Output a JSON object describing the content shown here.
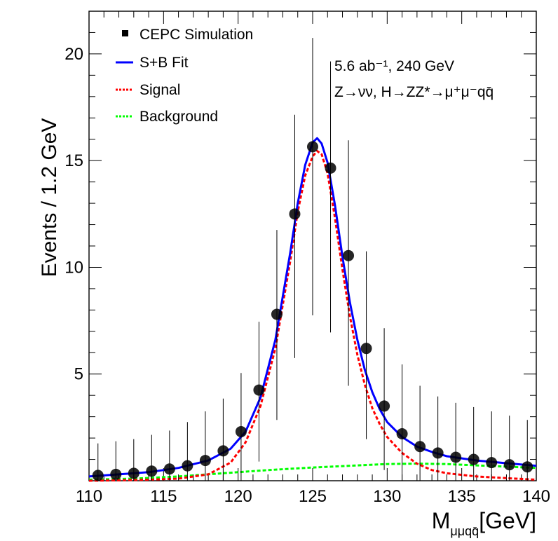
{
  "chart_data": {
    "type": "scatter",
    "title": "",
    "xlabel": "M",
    "xlabel_sub": "μμqq̄",
    "xlabel_unit": "[GeV]",
    "ylabel": "Events / 1.2  GeV",
    "xlim": [
      110,
      140
    ],
    "ylim": [
      0,
      22
    ],
    "xticks": [
      110,
      115,
      120,
      125,
      130,
      135,
      140
    ],
    "yticks": [
      5,
      10,
      15,
      20
    ],
    "annotation_lumi": "5.6 ab⁻¹, 240 GeV",
    "annotation_process": "Z→νν, H→ZZ*→μ⁺μ⁻qq̄",
    "legend": {
      "placement": "top-left",
      "entries": [
        {
          "label": "CEPC Simulation",
          "style": "marker",
          "color": "#000000"
        },
        {
          "label": "S+B Fit",
          "style": "solid",
          "color": "#0000ff"
        },
        {
          "label": "Signal",
          "style": "dotted",
          "color": "#ff0000"
        },
        {
          "label": "Background",
          "style": "dotted",
          "color": "#00ff00"
        }
      ]
    },
    "series": [
      {
        "name": "CEPC Simulation",
        "kind": "points",
        "color": "#000000",
        "x": [
          110.6,
          111.8,
          113.0,
          114.2,
          115.4,
          116.6,
          117.8,
          119.0,
          120.2,
          121.4,
          122.6,
          123.8,
          125.0,
          126.2,
          127.4,
          128.6,
          129.8,
          131.0,
          132.2,
          133.4,
          134.6,
          135.8,
          137.0,
          138.2,
          139.4
        ],
        "y": [
          0.25,
          0.3,
          0.35,
          0.45,
          0.55,
          0.7,
          0.95,
          1.4,
          2.3,
          4.25,
          7.8,
          12.5,
          15.65,
          14.65,
          10.55,
          6.2,
          3.5,
          2.2,
          1.6,
          1.3,
          1.1,
          1.0,
          0.85,
          0.75,
          0.65
        ],
        "err_hi": [
          1.75,
          1.85,
          1.95,
          2.15,
          2.35,
          2.75,
          3.25,
          3.85,
          5.05,
          7.45,
          11.75,
          17.15,
          20.75,
          19.65,
          15.95,
          10.75,
          7.15,
          5.45,
          4.45,
          3.95,
          3.65,
          3.45,
          3.25,
          3.05,
          2.85
        ],
        "err_lo": [
          0,
          0,
          0,
          0,
          0,
          0,
          0,
          0,
          0,
          0.9,
          2.85,
          5.75,
          7.75,
          6.95,
          4.45,
          1.95,
          0.5,
          0,
          0,
          0,
          0,
          0,
          0,
          0,
          0
        ]
      },
      {
        "name": "S+B Fit",
        "kind": "line",
        "color": "#0000ff",
        "x": [
          110.0,
          112.0,
          114.0,
          116.0,
          118.0,
          119.5,
          120.5,
          121.5,
          122.5,
          123.5,
          124.0,
          124.5,
          125.0,
          125.3,
          125.6,
          126.0,
          126.5,
          127.0,
          127.5,
          128.0,
          128.5,
          129.0,
          129.5,
          130.0,
          131.0,
          132.0,
          133.0,
          134.0,
          136.0,
          138.0,
          140.0
        ],
        "y": [
          0.2,
          0.3,
          0.4,
          0.6,
          0.95,
          1.5,
          2.3,
          3.9,
          6.6,
          10.7,
          13.0,
          14.8,
          15.85,
          16.05,
          15.8,
          14.9,
          12.9,
          10.5,
          8.35,
          6.6,
          5.2,
          4.15,
          3.35,
          2.75,
          2.05,
          1.6,
          1.35,
          1.15,
          0.95,
          0.82,
          0.7
        ]
      },
      {
        "name": "Signal",
        "kind": "line",
        "color": "#ff0000",
        "x": [
          110.0,
          112.0,
          114.0,
          116.0,
          118.0,
          119.5,
          120.5,
          121.5,
          122.5,
          123.5,
          124.0,
          124.5,
          125.0,
          125.3,
          125.6,
          126.0,
          126.5,
          127.0,
          127.5,
          128.0,
          128.5,
          129.0,
          129.5,
          130.0,
          131.0,
          132.0,
          133.0,
          134.0,
          136.0,
          138.0,
          140.0
        ],
        "y": [
          0.0,
          0.02,
          0.05,
          0.1,
          0.3,
          0.85,
          1.8,
          3.5,
          6.2,
          10.3,
          12.6,
          14.3,
          15.2,
          15.45,
          15.3,
          14.4,
          12.3,
          9.9,
          7.7,
          5.9,
          4.5,
          3.4,
          2.65,
          2.05,
          1.3,
          0.8,
          0.5,
          0.35,
          0.2,
          0.12,
          0.05
        ]
      },
      {
        "name": "Background",
        "kind": "line",
        "color": "#00ff00",
        "x": [
          110.0,
          113.0,
          116.0,
          119.0,
          122.0,
          125.0,
          128.0,
          130.0,
          132.0,
          134.0,
          136.0,
          138.0,
          140.0
        ],
        "y": [
          0.05,
          0.1,
          0.2,
          0.35,
          0.5,
          0.62,
          0.72,
          0.78,
          0.8,
          0.78,
          0.72,
          0.66,
          0.6
        ]
      }
    ]
  }
}
